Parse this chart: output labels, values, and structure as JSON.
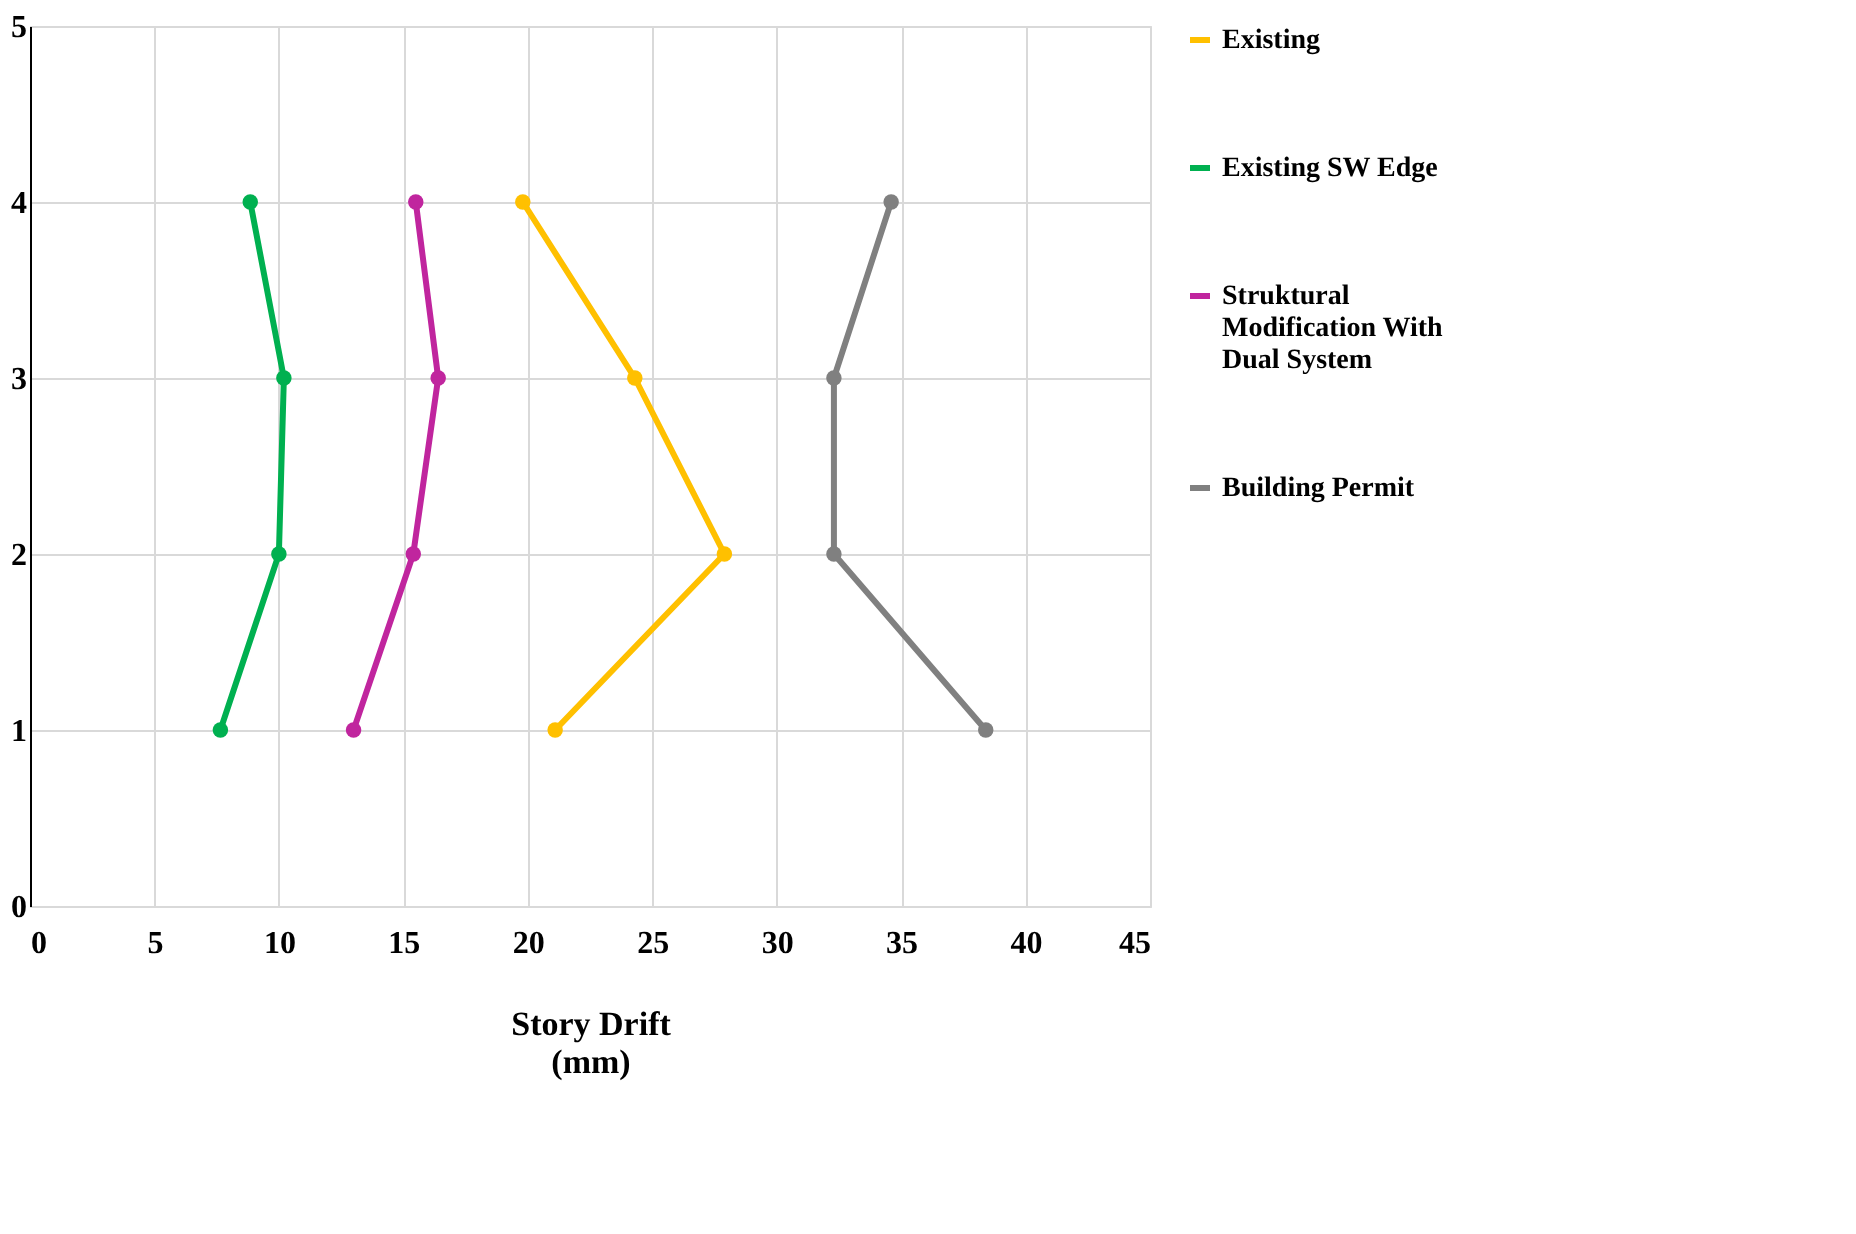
{
  "chart_data": {
    "type": "line",
    "xlabel": "Story Drift (mm)",
    "xlim": [
      0,
      45
    ],
    "xticks": [
      0,
      5,
      10,
      15,
      20,
      25,
      30,
      35,
      40,
      45
    ],
    "ylim": [
      0,
      5
    ],
    "yticks": [
      0,
      1,
      2,
      3,
      4,
      5
    ],
    "grid": true,
    "legend": "right",
    "marker": "circle",
    "line_style": "solid",
    "series": [
      {
        "name": "Existing",
        "color": "#ffc000",
        "x": [
          19.8,
          24.3,
          27.9,
          21.1
        ],
        "values": [
          4,
          3,
          2,
          1
        ]
      },
      {
        "name": "Existing SW Edge",
        "color": "#00b050",
        "x": [
          8.85,
          10.2,
          10.0,
          7.65
        ],
        "values": [
          4,
          3,
          2,
          1
        ]
      },
      {
        "name": "Struktural Modification With Dual System",
        "color": "#c0259e",
        "x": [
          15.5,
          16.4,
          15.4,
          13.0
        ],
        "values": [
          4,
          3,
          2,
          1
        ]
      },
      {
        "name": "Building Permit",
        "color": "#808080",
        "x": [
          34.6,
          32.3,
          32.3,
          38.4
        ],
        "values": [
          4,
          3,
          2,
          1
        ]
      }
    ]
  }
}
